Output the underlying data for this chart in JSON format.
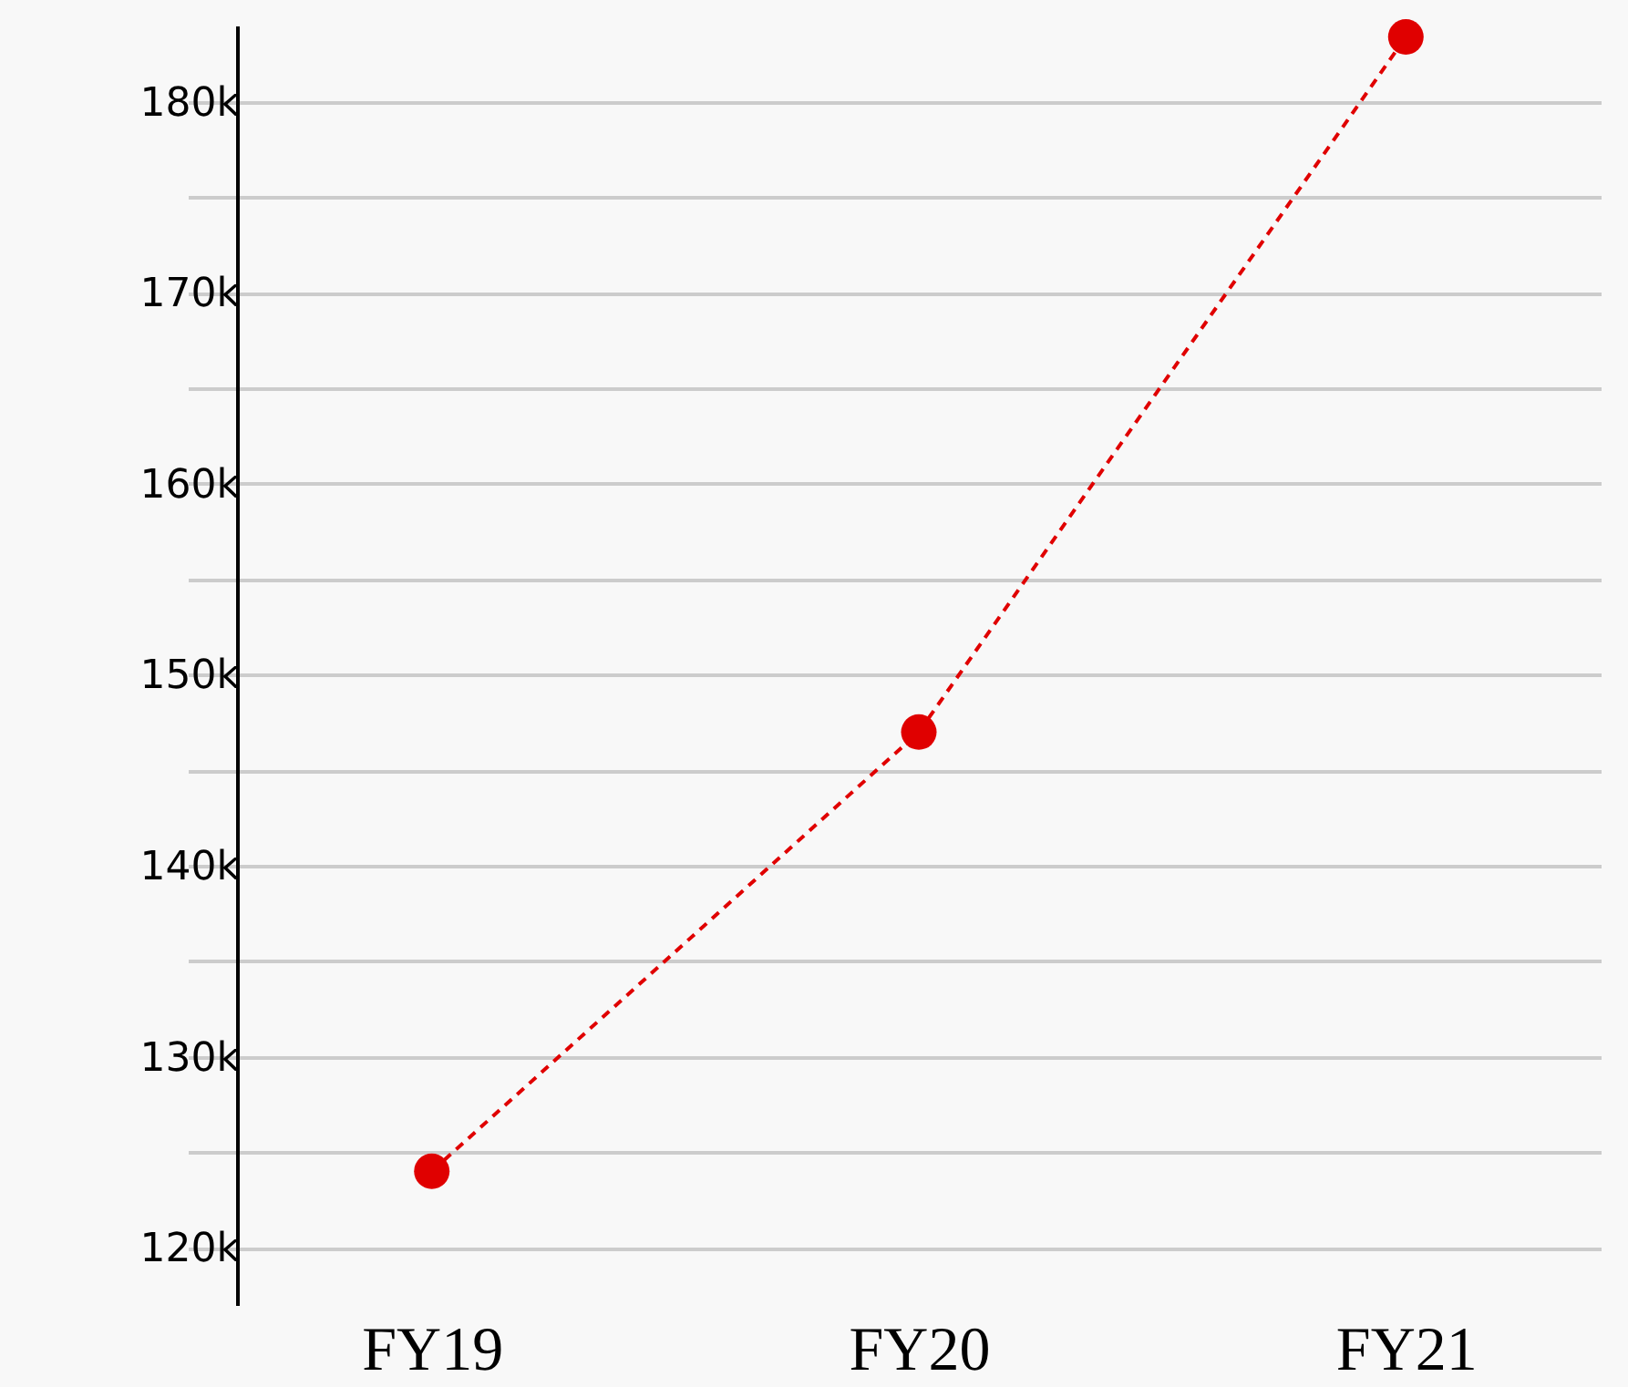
{
  "chart_data": {
    "type": "line",
    "categories": [
      "FY19",
      "FY20",
      "FY21"
    ],
    "values": [
      124000,
      147000,
      183400
    ],
    "color": "#e00000",
    "line_style": "dashed",
    "marker": "circle",
    "grid": "y",
    "ylim": [
      117000,
      184000
    ],
    "yticks": [
      {
        "value": 120000,
        "label": "120k"
      },
      {
        "value": 125000,
        "label": null
      },
      {
        "value": 130000,
        "label": "130k"
      },
      {
        "value": 135000,
        "label": null
      },
      {
        "value": 140000,
        "label": "140k"
      },
      {
        "value": 145000,
        "label": null
      },
      {
        "value": 150000,
        "label": "150k"
      },
      {
        "value": 155000,
        "label": null
      },
      {
        "value": 160000,
        "label": "160k"
      },
      {
        "value": 165000,
        "label": null
      },
      {
        "value": 170000,
        "label": "170k"
      },
      {
        "value": 175000,
        "label": null
      },
      {
        "value": 180000,
        "label": "180k"
      }
    ]
  }
}
